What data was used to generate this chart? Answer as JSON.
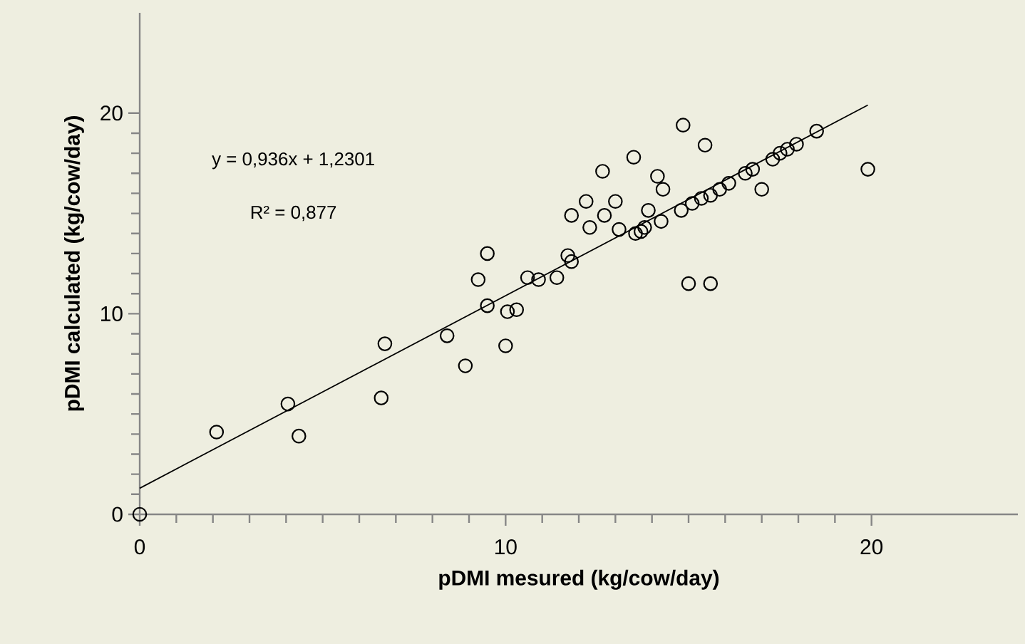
{
  "chart_data": {
    "type": "scatter",
    "xlabel": "pDMI mesured (kg/cow/day)",
    "ylabel": "pDMI calculated (kg/cow/day)",
    "xlim": [
      0,
      24
    ],
    "ylim": [
      0,
      25
    ],
    "xticks": [
      0,
      10,
      20
    ],
    "yticks": [
      0,
      10,
      20
    ],
    "marker": "circle",
    "grid": false,
    "annotations": [
      "y = 0,936x + 1,2301",
      "R² = 0,877"
    ],
    "series": [
      {
        "color": "#000000",
        "x": [
          0,
          2.1,
          4.05,
          4.35,
          6.6,
          6.7,
          8.4,
          8.9,
          10.0,
          10.05,
          10.3,
          9.5,
          9.25,
          9.5,
          10.6,
          10.9,
          11.4,
          11.7,
          11.8,
          11.8,
          12.2,
          12.3,
          12.65,
          13.5,
          14.85,
          15.45,
          14.15,
          14.3,
          13.0,
          12.7,
          13.9,
          13.1,
          13.55,
          13.7,
          13.8,
          14.25,
          14.8,
          15.1,
          15.35,
          15.6,
          15.85,
          16.1,
          16.55,
          16.75,
          17.0,
          17.3,
          17.5,
          17.7,
          17.95,
          18.5,
          19.9,
          15.0,
          15.6
        ],
        "values": [
          0,
          4.1,
          5.5,
          3.9,
          5.8,
          8.5,
          8.9,
          7.4,
          8.4,
          10.1,
          10.2,
          10.4,
          11.7,
          13.0,
          11.8,
          11.7,
          11.8,
          12.9,
          12.6,
          14.9,
          15.6,
          14.3,
          17.1,
          17.8,
          19.4,
          18.4,
          16.85,
          16.2,
          15.6,
          14.9,
          15.15,
          14.2,
          14.0,
          14.1,
          14.3,
          14.6,
          15.15,
          15.5,
          15.75,
          15.9,
          16.2,
          16.5,
          17.0,
          17.2,
          16.2,
          17.7,
          18.0,
          18.2,
          18.45,
          19.1,
          17.2,
          11.5,
          11.5
        ]
      },
      {
        "type": "line",
        "color": "#000000",
        "marker": "none",
        "x": [
          0,
          19.9
        ],
        "values": [
          1.3,
          20.4
        ]
      }
    ]
  }
}
